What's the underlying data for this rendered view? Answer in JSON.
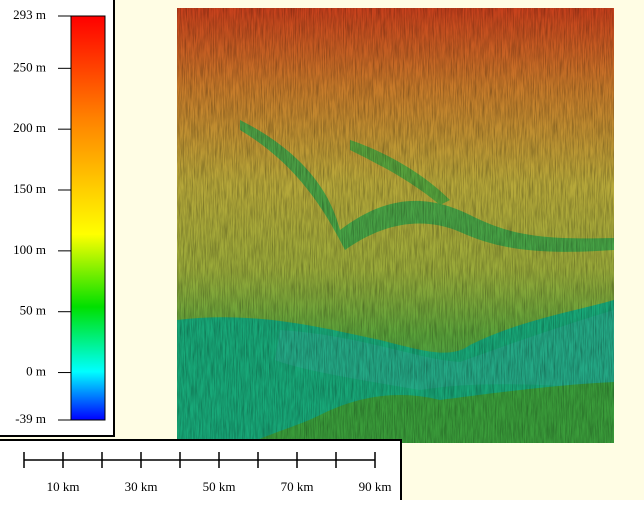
{
  "legend": {
    "ticks": [
      {
        "value": 293,
        "label": "293 m"
      },
      {
        "value": 250,
        "label": "250 m"
      },
      {
        "value": 200,
        "label": "200 m"
      },
      {
        "value": 150,
        "label": "150 m"
      },
      {
        "value": 100,
        "label": "100 m"
      },
      {
        "value": 50,
        "label": "50 m"
      },
      {
        "value": 0,
        "label": "0 m"
      },
      {
        "value": -39,
        "label": "-39 m"
      }
    ]
  },
  "scale_bar": {
    "ticks": [
      {
        "value": 10,
        "label": "10 km"
      },
      {
        "value": 30,
        "label": "30 km"
      },
      {
        "value": 50,
        "label": "50 km"
      },
      {
        "value": 70,
        "label": "70 km"
      },
      {
        "value": 90,
        "label": "90 km"
      }
    ]
  }
}
